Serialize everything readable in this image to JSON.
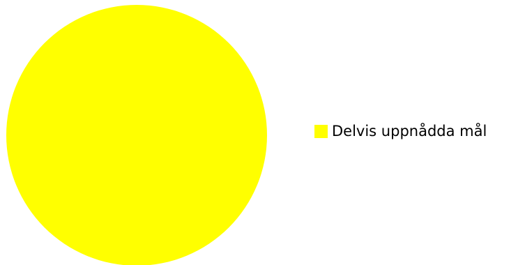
{
  "chart_data": {
    "type": "pie",
    "title": "",
    "series": [
      {
        "name": "Delvis uppnådda mål",
        "values": [
          100
        ]
      }
    ],
    "categories": [
      "Delvis uppnådda mål"
    ],
    "values": [
      100
    ],
    "colors": [
      "#FFFF00"
    ],
    "legend_position": "right"
  },
  "legend": {
    "items": [
      {
        "label": "Delvis uppnådda mål",
        "color": "#FFFF00"
      }
    ]
  }
}
